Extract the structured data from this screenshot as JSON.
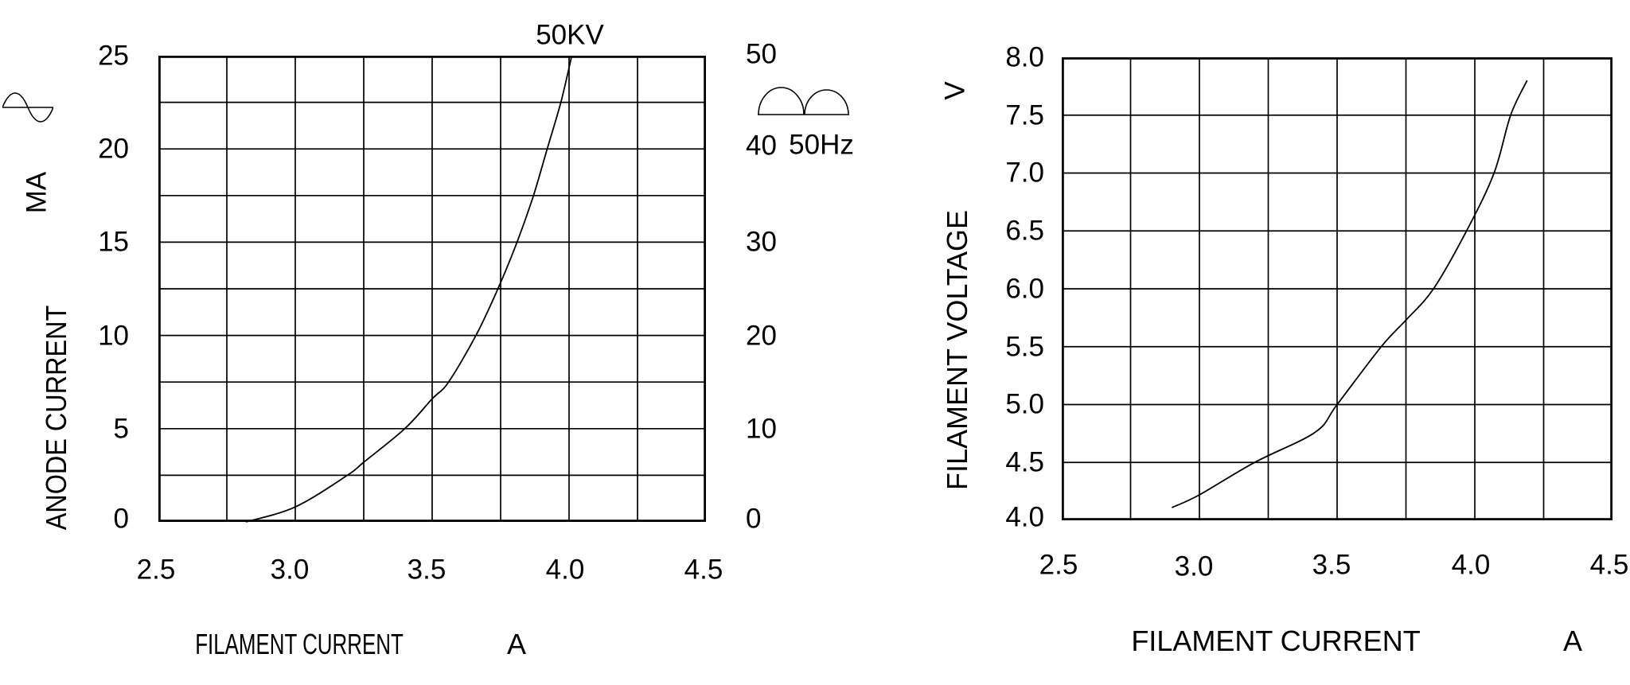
{
  "figure": {
    "background": "#ffffff",
    "ink_color": "#000000"
  },
  "chart_data": [
    {
      "type": "line",
      "curve_label": "50KV",
      "xlabel": "FILAMENT CURRENT",
      "x_unit": "A",
      "ylabel": "ANODE CURRENT",
      "y_unit": "MA",
      "xlim": [
        2.5,
        4.5
      ],
      "ylim": [
        0,
        25
      ],
      "x_grid_step": 0.25,
      "y_grid_step": 2.5,
      "grid": true,
      "x_ticks": [
        "2.5",
        "3.0",
        "3.5",
        "4.0",
        "4.5"
      ],
      "y_left_ticks": [
        "25",
        "20",
        "15",
        "10",
        "5",
        "0"
      ],
      "y_right_ticks": [
        "50",
        "40",
        "30",
        "20",
        "10",
        "0"
      ],
      "secondary_y_axis": {
        "range": [
          0,
          50
        ],
        "label": "50Hz",
        "waveform_icon": "full-wave-rectified"
      },
      "input_waveform_icon": "sine-wave",
      "points": [
        [
          2.82,
          0
        ],
        [
          3.0,
          0.8
        ],
        [
          3.19,
          2.5
        ],
        [
          3.25,
          3.2
        ],
        [
          3.4,
          5.0
        ],
        [
          3.5,
          6.6
        ],
        [
          3.56,
          7.5
        ],
        [
          3.66,
          10.0
        ],
        [
          3.74,
          12.5
        ],
        [
          3.81,
          15.0
        ],
        [
          3.87,
          17.5
        ],
        [
          3.92,
          20.0
        ],
        [
          3.97,
          22.5
        ],
        [
          4.01,
          25.0
        ]
      ]
    },
    {
      "type": "line",
      "curve_label": "",
      "xlabel": "FILAMENT CURRENT",
      "x_unit": "A",
      "ylabel": "FILAMENT VOLTAGE",
      "y_unit": "V",
      "xlim": [
        2.5,
        4.5
      ],
      "ylim": [
        4.0,
        8.0
      ],
      "x_grid_step": 0.25,
      "y_grid_step": 0.5,
      "grid": true,
      "x_ticks": [
        "2.5",
        "3.0",
        "3.5",
        "4.0",
        "4.5"
      ],
      "y_left_ticks": [
        "8.0",
        "7.5",
        "7.0",
        "6.5",
        "6.0",
        "5.5",
        "5.0",
        "4.5",
        "4.0"
      ],
      "points": [
        [
          2.9,
          4.11
        ],
        [
          3.0,
          4.22
        ],
        [
          3.2,
          4.5
        ],
        [
          3.42,
          4.76
        ],
        [
          3.5,
          5.0
        ],
        [
          3.66,
          5.5
        ],
        [
          3.75,
          5.73
        ],
        [
          3.85,
          6.0
        ],
        [
          3.97,
          6.5
        ],
        [
          4.07,
          7.0
        ],
        [
          4.13,
          7.5
        ],
        [
          4.19,
          7.8
        ]
      ]
    }
  ]
}
